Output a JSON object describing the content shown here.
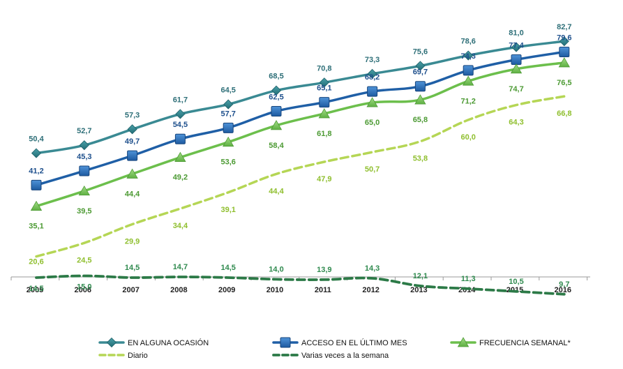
{
  "chart_data": {
    "type": "line",
    "title": "",
    "xlabel": "",
    "ylabel": "",
    "categories": [
      "2005",
      "2006",
      "2007",
      "2008",
      "2009",
      "2010",
      "2011",
      "2012",
      "2013",
      "2014",
      "2015",
      "2016"
    ],
    "ylim": [
      0,
      90
    ],
    "grid": false,
    "legend_position": "bottom",
    "series": [
      {
        "name": "EN ALGUNA OCASIÓN",
        "marker": "diamond",
        "dash": "solid",
        "line_color": "#3a8a93",
        "marker_color": "#2e7d86",
        "label_color": "#2e6f78",
        "values": [
          50.4,
          52.7,
          57.3,
          61.7,
          64.5,
          68.5,
          70.8,
          73.3,
          75.6,
          78.6,
          81.0,
          82.7
        ],
        "labels": [
          "50,4",
          "52,7",
          "57,3",
          "61,7",
          "64,5",
          "68,5",
          "70,8",
          "73,3",
          "75,6",
          "78,6",
          "81,0",
          "82,7"
        ]
      },
      {
        "name": "ACCESO EN EL ÚLTIMO MES",
        "marker": "square",
        "dash": "solid",
        "line_color": "#1f5fa6",
        "marker_color": "#2a72c4",
        "label_color": "#1d4f8c",
        "values": [
          41.2,
          45.3,
          49.7,
          54.5,
          57.7,
          62.5,
          65.1,
          68.2,
          69.7,
          74.3,
          77.4,
          79.6
        ],
        "labels": [
          "41,2",
          "45,3",
          "49,7",
          "54,5",
          "57,7",
          "62,5",
          "65,1",
          "68,2",
          "69,7",
          "74,3",
          "77,4",
          "79,6"
        ]
      },
      {
        "name": "FRECUENCIA SEMANAL*",
        "marker": "triangle",
        "dash": "solid",
        "line_color": "#6cbf4c",
        "marker_color": "#7cc95e",
        "label_color": "#4c9a33",
        "values": [
          35.1,
          39.5,
          44.4,
          49.2,
          53.6,
          58.4,
          61.8,
          65.0,
          65.8,
          71.2,
          74.7,
          76.5
        ],
        "labels": [
          "35,1",
          "39,5",
          "44,4",
          "49,2",
          "53,6",
          "58,4",
          "61,8",
          "65,0",
          "65,8",
          "71,2",
          "74,7",
          "76,5"
        ]
      },
      {
        "name": "Diario",
        "marker": "none",
        "dash": "dashed",
        "line_color": "#b5d655",
        "marker_color": "#b5d655",
        "label_color": "#8fbf2e",
        "values": [
          20.6,
          24.5,
          29.9,
          34.4,
          39.1,
          44.4,
          47.9,
          50.7,
          53.8,
          60.0,
          64.3,
          66.8
        ],
        "labels": [
          "20,6",
          "24,5",
          "29,9",
          "34,4",
          "39,1",
          "44,4",
          "47,9",
          "50,7",
          "53,8",
          "60,0",
          "64,3",
          "66,8"
        ]
      },
      {
        "name": "Varias veces a la semana",
        "marker": "none",
        "dash": "dashed",
        "line_color": "#2c7a47",
        "marker_color": "#2c7a47",
        "label_color": "#2f8a4e",
        "values": [
          14.5,
          15.0,
          14.5,
          14.7,
          14.5,
          14.0,
          13.9,
          14.3,
          12.1,
          11.3,
          10.5,
          9.7
        ],
        "labels": [
          "14,5",
          "15,0",
          "14,5",
          "14,7",
          "14,5",
          "14,0",
          "13,9",
          "14,3",
          "12,1",
          "11,3",
          "10,5",
          "9,7"
        ]
      }
    ]
  }
}
